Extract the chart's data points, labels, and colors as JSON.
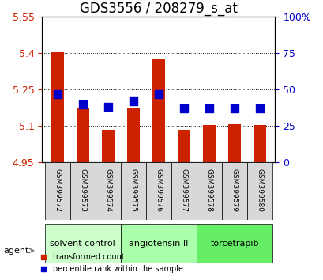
{
  "title": "GDS3556 / 208279_s_at",
  "samples": [
    "GSM399572",
    "GSM399573",
    "GSM399574",
    "GSM399575",
    "GSM399576",
    "GSM399577",
    "GSM399578",
    "GSM399579",
    "GSM399580"
  ],
  "red_values": [
    5.405,
    5.175,
    5.085,
    5.175,
    5.375,
    5.085,
    5.105,
    5.108,
    5.105
  ],
  "blue_values_pct": [
    47,
    40,
    38,
    42,
    47,
    37,
    37,
    37,
    37
  ],
  "ylim": [
    4.95,
    5.55
  ],
  "yticks": [
    4.95,
    5.1,
    5.25,
    5.4,
    5.55
  ],
  "ytick_labels": [
    "4.95",
    "5.1",
    "5.25",
    "5.4",
    "5.55"
  ],
  "right_yticks": [
    0,
    25,
    50,
    75,
    100
  ],
  "right_ytick_labels": [
    "0",
    "25",
    "50",
    "75",
    "100%"
  ],
  "baseline": 4.95,
  "bar_width": 0.5,
  "bar_color": "#cc2200",
  "dot_color": "#0000cc",
  "dot_size": 50,
  "group_boundaries": [
    [
      0,
      3,
      "solvent control",
      "#ccffcc"
    ],
    [
      3,
      6,
      "angiotensin II",
      "#aaffaa"
    ],
    [
      6,
      9,
      "torcetrapib",
      "#66ee66"
    ]
  ],
  "agent_label": "agent",
  "legend_items": [
    {
      "label": "transformed count",
      "color": "#cc2200"
    },
    {
      "label": "percentile rank within the sample",
      "color": "#0000cc"
    }
  ],
  "tick_color_left": "#cc2200",
  "tick_color_right": "#0000cc",
  "title_fontsize": 12,
  "tick_fontsize": 9
}
